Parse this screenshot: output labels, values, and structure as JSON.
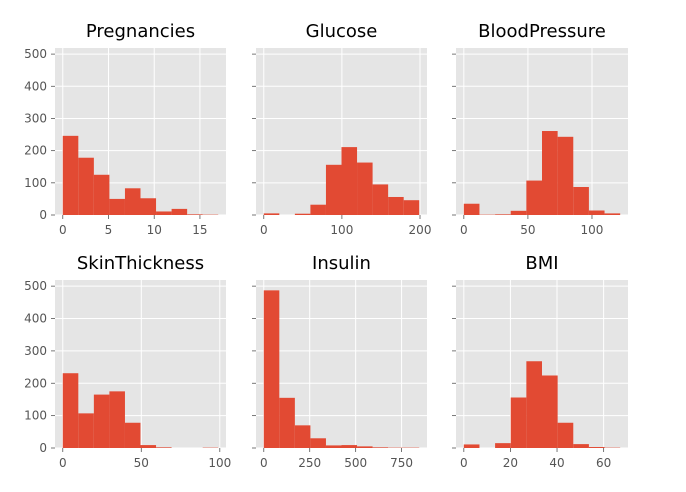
{
  "chart_data": [
    {
      "type": "bar",
      "title": "Pregnancies",
      "xlim": [
        -0.85,
        17.85
      ],
      "ylim": [
        0,
        519
      ],
      "xticks": [
        0,
        5,
        10,
        15
      ],
      "yticks": [
        0,
        100,
        200,
        300,
        400,
        500
      ],
      "bins": [
        [
          0,
          1.7,
          246
        ],
        [
          1.7,
          3.4,
          178
        ],
        [
          3.4,
          5.1,
          125
        ],
        [
          5.1,
          6.8,
          50
        ],
        [
          6.8,
          8.5,
          83
        ],
        [
          8.5,
          10.2,
          52
        ],
        [
          10.2,
          11.9,
          11
        ],
        [
          11.9,
          13.6,
          19
        ],
        [
          13.6,
          15.3,
          2
        ],
        [
          15.3,
          17.0,
          1
        ]
      ]
    },
    {
      "type": "bar",
      "title": "Glucose",
      "xlim": [
        -9.95,
        208.95
      ],
      "ylim": [
        0,
        519
      ],
      "xticks": [
        0,
        100,
        200
      ],
      "yticks": [
        0,
        100,
        200,
        300,
        400,
        500
      ],
      "bins": [
        [
          0,
          19.9,
          5
        ],
        [
          19.9,
          39.8,
          0
        ],
        [
          39.8,
          59.7,
          4
        ],
        [
          59.7,
          79.6,
          32
        ],
        [
          79.6,
          99.5,
          156
        ],
        [
          99.5,
          119.4,
          211
        ],
        [
          119.4,
          139.3,
          163
        ],
        [
          139.3,
          159.2,
          95
        ],
        [
          159.2,
          179.1,
          56
        ],
        [
          179.1,
          199.0,
          46
        ]
      ]
    },
    {
      "type": "bar",
      "title": "BloodPressure",
      "xlim": [
        -6.1,
        128.1
      ],
      "ylim": [
        0,
        519
      ],
      "xticks": [
        0,
        50,
        100
      ],
      "yticks": [
        0,
        100,
        200,
        300,
        400,
        500
      ],
      "bins": [
        [
          0,
          12.2,
          35
        ],
        [
          12.2,
          24.4,
          1
        ],
        [
          24.4,
          36.6,
          2
        ],
        [
          36.6,
          48.8,
          13
        ],
        [
          48.8,
          61.0,
          107
        ],
        [
          61.0,
          73.2,
          261
        ],
        [
          73.2,
          85.4,
          243
        ],
        [
          85.4,
          97.6,
          87
        ],
        [
          97.6,
          109.8,
          14
        ],
        [
          109.8,
          122.0,
          5
        ]
      ]
    },
    {
      "type": "bar",
      "title": "SkinThickness",
      "xlim": [
        -4.95,
        103.95
      ],
      "ylim": [
        0,
        519
      ],
      "xticks": [
        0,
        50,
        100
      ],
      "yticks": [
        0,
        100,
        200,
        300,
        400,
        500
      ],
      "bins": [
        [
          0,
          9.9,
          231
        ],
        [
          9.9,
          19.8,
          107
        ],
        [
          19.8,
          29.7,
          165
        ],
        [
          29.7,
          39.6,
          175
        ],
        [
          39.6,
          49.5,
          78
        ],
        [
          49.5,
          59.4,
          9
        ],
        [
          59.4,
          69.3,
          2
        ],
        [
          69.3,
          79.2,
          0
        ],
        [
          79.2,
          89.1,
          0
        ],
        [
          89.1,
          99.0,
          1
        ]
      ]
    },
    {
      "type": "bar",
      "title": "Insulin",
      "xlim": [
        -42.3,
        888.3
      ],
      "ylim": [
        0,
        519
      ],
      "xticks": [
        0,
        250,
        500,
        750
      ],
      "yticks": [
        0,
        100,
        200,
        300,
        400,
        500
      ],
      "bins": [
        [
          0,
          84.6,
          487
        ],
        [
          84.6,
          169.2,
          155
        ],
        [
          169.2,
          253.8,
          70
        ],
        [
          253.8,
          338.4,
          30
        ],
        [
          338.4,
          423.0,
          8
        ],
        [
          423.0,
          507.6,
          9
        ],
        [
          507.6,
          592.2,
          5
        ],
        [
          592.2,
          676.8,
          2
        ],
        [
          676.8,
          761.4,
          1
        ],
        [
          761.4,
          846.0,
          1
        ]
      ]
    },
    {
      "type": "bar",
      "title": "BMI",
      "xlim": [
        -3.355,
        70.455
      ],
      "ylim": [
        0,
        519
      ],
      "xticks": [
        0,
        20,
        40,
        60
      ],
      "yticks": [
        0,
        100,
        200,
        300,
        400,
        500
      ],
      "bins": [
        [
          0,
          6.71,
          11
        ],
        [
          6.71,
          13.42,
          0
        ],
        [
          13.42,
          20.13,
          15
        ],
        [
          20.13,
          26.84,
          156
        ],
        [
          26.84,
          33.55,
          268
        ],
        [
          33.55,
          40.26,
          224
        ],
        [
          40.26,
          46.97,
          78
        ],
        [
          46.97,
          53.68,
          12
        ],
        [
          53.68,
          60.39,
          3
        ],
        [
          60.39,
          67.1,
          1
        ]
      ]
    }
  ]
}
